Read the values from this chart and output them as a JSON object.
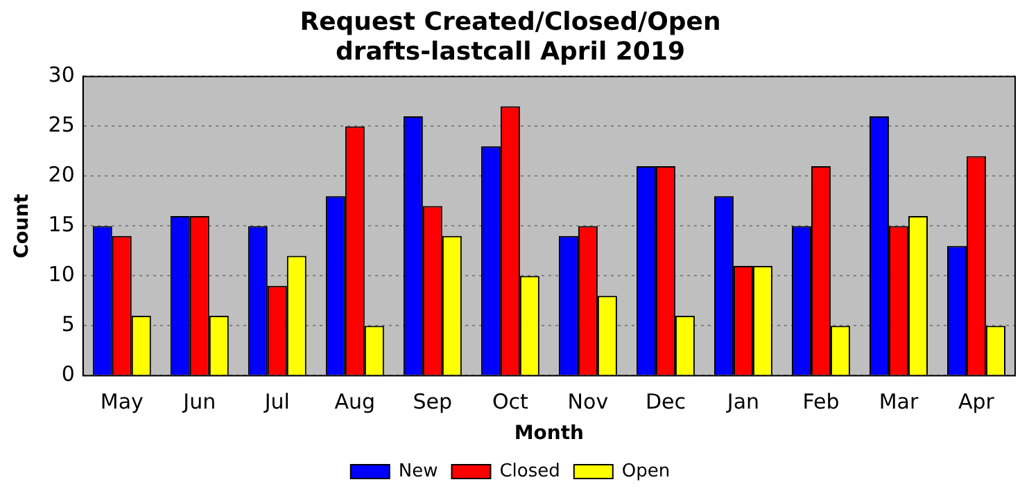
{
  "chart_data": {
    "type": "bar",
    "title": "Request Created/Closed/Open\ndrafts-lastcall April 2019",
    "xlabel": "Month",
    "ylabel": "Count",
    "categories": [
      "May",
      "Jun",
      "Jul",
      "Aug",
      "Sep",
      "Oct",
      "Nov",
      "Dec",
      "Jan",
      "Feb",
      "Mar",
      "Apr"
    ],
    "series": [
      {
        "name": "New",
        "color": "#0000ff",
        "values": [
          15,
          16,
          15,
          18,
          26,
          23,
          14,
          21,
          18,
          15,
          26,
          13
        ]
      },
      {
        "name": "Closed",
        "color": "#ff0000",
        "values": [
          14,
          16,
          9,
          25,
          17,
          27,
          15,
          21,
          11,
          21,
          15,
          22
        ]
      },
      {
        "name": "Open",
        "color": "#ffff00",
        "values": [
          6,
          6,
          12,
          5,
          14,
          10,
          8,
          6,
          11,
          5,
          16,
          5
        ]
      }
    ],
    "ylim": [
      0,
      30
    ],
    "yticks": [
      0,
      5,
      10,
      15,
      20,
      25,
      30
    ],
    "grid": "y",
    "legend": "bottom"
  }
}
